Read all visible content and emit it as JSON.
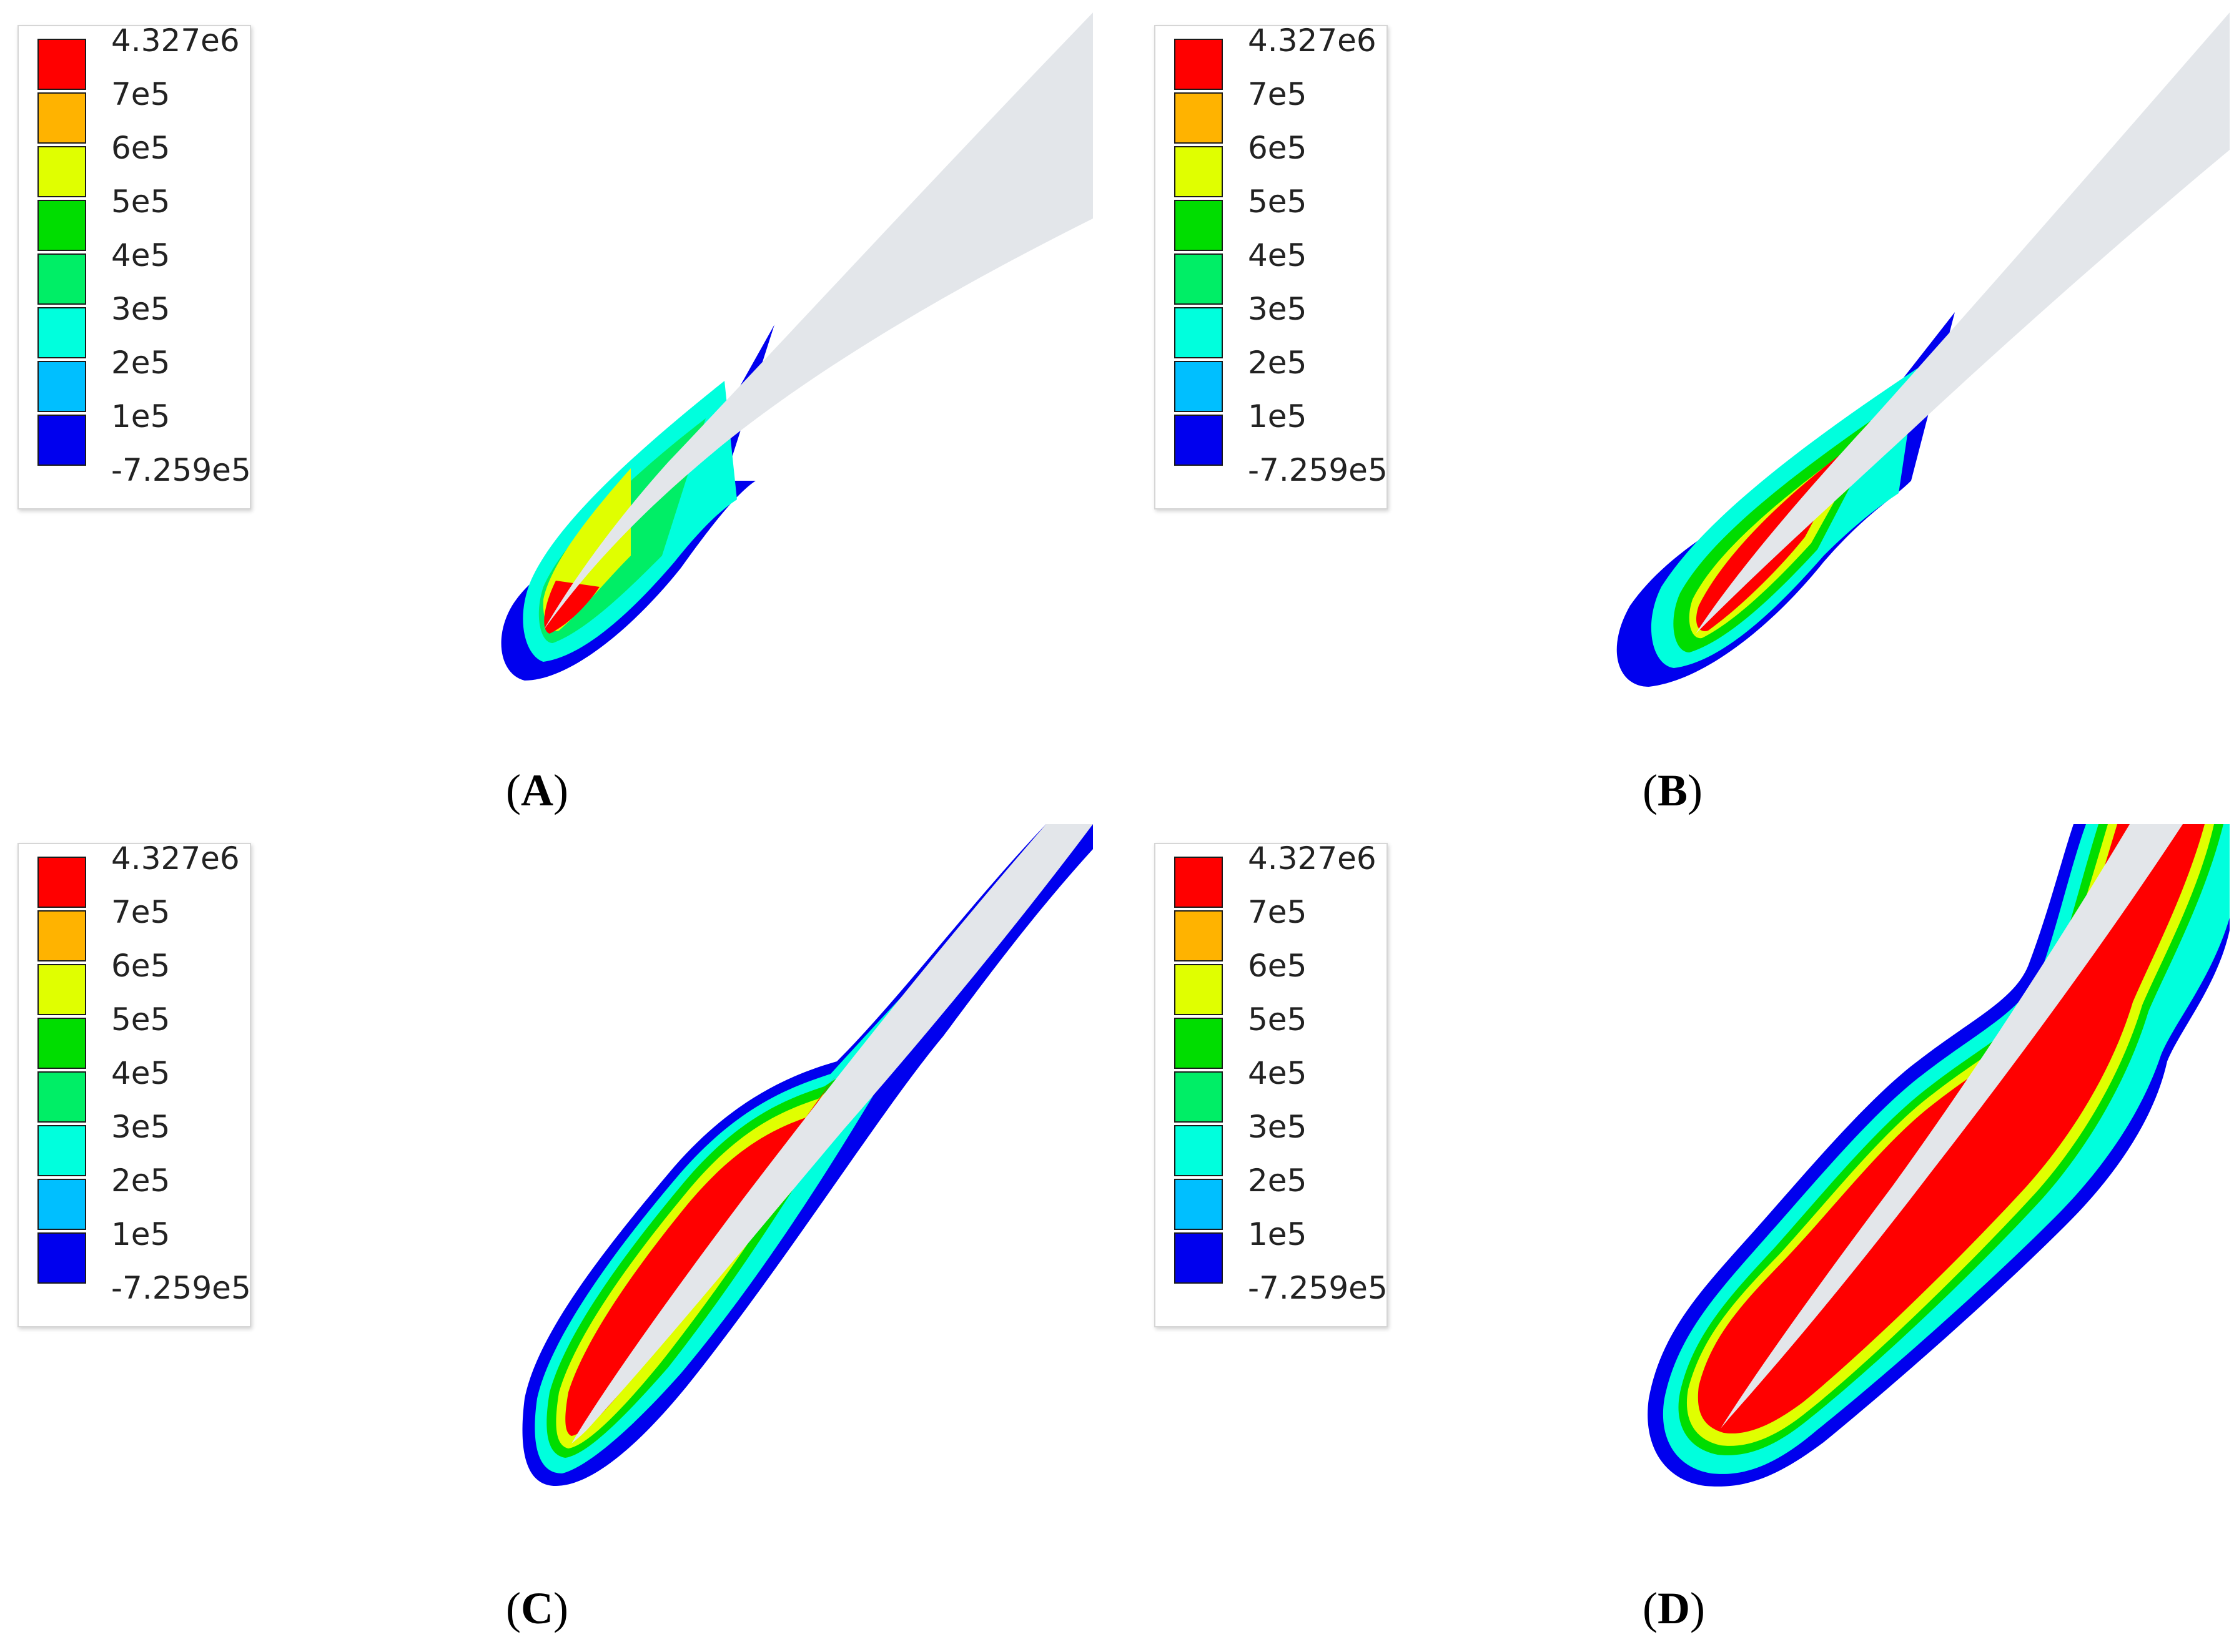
{
  "legend": {
    "entries": [
      {
        "label": "4.327e6",
        "color": "#ff0000"
      },
      {
        "label": "7e5",
        "color": "#ffb300"
      },
      {
        "label": "6e5",
        "color": "#e0ff00"
      },
      {
        "label": "5e5",
        "color": "#00dd00"
      },
      {
        "label": "4e5",
        "color": "#00ee66"
      },
      {
        "label": "3e5",
        "color": "#00ffdd"
      },
      {
        "label": "2e5",
        "color": "#00bfff"
      },
      {
        "label": "1e5",
        "color": "#0000ee"
      }
    ],
    "min_label": "-7.259e5"
  },
  "panels": [
    {
      "id": "a",
      "letter": "A"
    },
    {
      "id": "b",
      "letter": "B"
    },
    {
      "id": "c",
      "letter": "C"
    },
    {
      "id": "d",
      "letter": "D"
    }
  ],
  "colors": {
    "blade": "#e3e6ea",
    "band_outer": "#0000ee",
    "band_1": "#00bfff",
    "band_2": "#00ffdd",
    "band_3": "#00ee66",
    "band_4": "#00dd00",
    "band_5": "#e0ff00",
    "band_6": "#ffb300",
    "band_inner": "#ff0000"
  }
}
